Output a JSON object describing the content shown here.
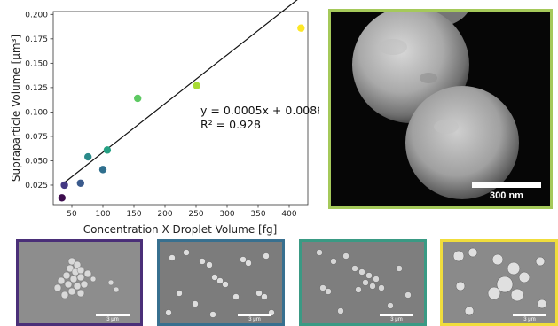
{
  "chart_data": {
    "type": "scatter",
    "xlabel": "Concentration X Droplet Volume [fg]",
    "ylabel": "Supraparticle Volume [μm³]",
    "xlim": [
      20,
      430
    ],
    "ylim": [
      0.005,
      0.203
    ],
    "xticks": [
      "50",
      "100",
      "150",
      "200",
      "250",
      "300",
      "350",
      "400"
    ],
    "yticks": [
      "0.025",
      "0.050",
      "0.075",
      "0.100",
      "0.125",
      "0.150",
      "0.175",
      "0.200"
    ],
    "points": [
      {
        "x": 34,
        "y": 0.012,
        "color": "#3d0d4e"
      },
      {
        "x": 38,
        "y": 0.025,
        "color": "#443983"
      },
      {
        "x": 64,
        "y": 0.027,
        "color": "#3a5a8c"
      },
      {
        "x": 76,
        "y": 0.054,
        "color": "#2a8a8a"
      },
      {
        "x": 100,
        "y": 0.041,
        "color": "#2f6f8e"
      },
      {
        "x": 107,
        "y": 0.061,
        "color": "#25a083"
      },
      {
        "x": 156,
        "y": 0.114,
        "color": "#5dc962"
      },
      {
        "x": 251,
        "y": 0.127,
        "color": "#a8db34"
      },
      {
        "x": 419,
        "y": 0.186,
        "color": "#fde725"
      }
    ],
    "fit": {
      "slope": 0.0005,
      "intercept": 0.0086,
      "x_range": [
        35,
        419
      ]
    },
    "annotation": {
      "equation": "y = 0.0005x + 0.0086",
      "r2": "R² = 0.928"
    }
  },
  "sem_main": {
    "border_color": "#a5c95a",
    "scale_label": "300 nm"
  },
  "sem_thumbs": [
    {
      "border_color": "#4a2f78",
      "scale_label": "3 μm"
    },
    {
      "border_color": "#38708f",
      "scale_label": "3 μm"
    },
    {
      "border_color": "#3a9a84",
      "scale_label": "3 μm"
    },
    {
      "border_color": "#f0dd3c",
      "scale_label": "3 μm"
    }
  ]
}
